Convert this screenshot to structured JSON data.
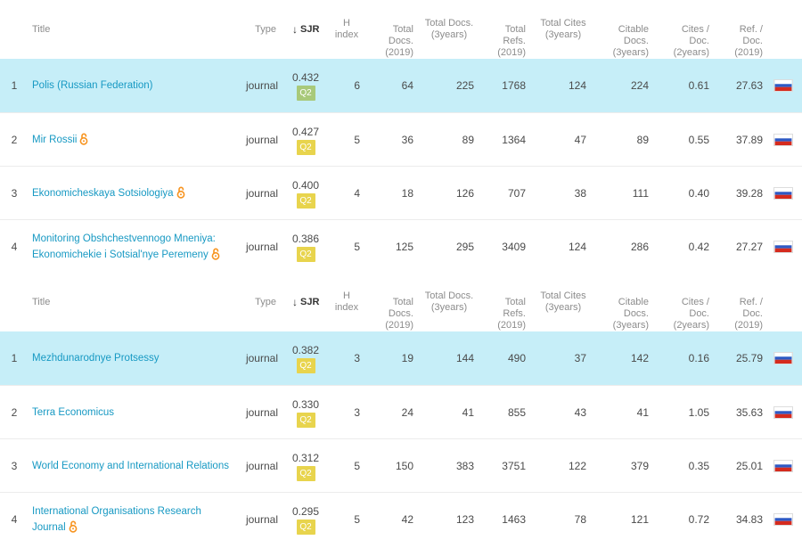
{
  "colors": {
    "link": "#1799c3",
    "highlight_row": "#c6eef8",
    "q2_badge": "#e8d44d",
    "q2_badge_highlighted": "#a8c97a"
  },
  "header": {
    "title": "Title",
    "type": "Type",
    "sjr": "SJR",
    "h_index_1": "H",
    "h_index_2": "index",
    "total_docs_1": "Total",
    "total_docs_2": "Docs.",
    "total_docs_3": "(2019)",
    "total_docs_3y_1": "Total Docs.",
    "total_docs_3y_2": "(3years)",
    "total_refs_1": "Total",
    "total_refs_2": "Refs.",
    "total_refs_3": "(2019)",
    "total_cites_1": "Total Cites",
    "total_cites_2": "(3years)",
    "citable_1": "Citable",
    "citable_2": "Docs.",
    "citable_3": "(3years)",
    "cites_doc_1": "Cites /",
    "cites_doc_2": "Doc.",
    "cites_doc_3": "(2years)",
    "ref_doc_1": "Ref. /",
    "ref_doc_2": "Doc.",
    "ref_doc_3": "(2019)"
  },
  "tables": [
    {
      "rows": [
        {
          "rank": "1",
          "title": "Polis (Russian Federation)",
          "open_access": false,
          "type": "journal",
          "sjr": "0.432",
          "quartile": "Q2",
          "h_index": "6",
          "total_docs": "64",
          "total_docs_3y": "225",
          "total_refs": "1768",
          "total_cites_3y": "124",
          "citable_docs_3y": "224",
          "cites_per_doc": "0.61",
          "refs_per_doc": "27.63",
          "country_flag": "russia-flag-icon"
        },
        {
          "rank": "2",
          "title": "Mir Rossii",
          "open_access": true,
          "type": "journal",
          "sjr": "0.427",
          "quartile": "Q2",
          "h_index": "5",
          "total_docs": "36",
          "total_docs_3y": "89",
          "total_refs": "1364",
          "total_cites_3y": "47",
          "citable_docs_3y": "89",
          "cites_per_doc": "0.55",
          "refs_per_doc": "37.89",
          "country_flag": "russia-flag-icon"
        },
        {
          "rank": "3",
          "title": "Ekonomicheskaya Sotsiologiya",
          "open_access": true,
          "type": "journal",
          "sjr": "0.400",
          "quartile": "Q2",
          "h_index": "4",
          "total_docs": "18",
          "total_docs_3y": "126",
          "total_refs": "707",
          "total_cites_3y": "38",
          "citable_docs_3y": "111",
          "cites_per_doc": "0.40",
          "refs_per_doc": "39.28",
          "country_flag": "russia-flag-icon"
        },
        {
          "rank": "4",
          "title_line1": "Monitoring Obshchestvennogo Mneniya:",
          "title_line2": "Ekonomichekie i Sotsial'nye Peremeny",
          "open_access": true,
          "type": "journal",
          "sjr": "0.386",
          "quartile": "Q2",
          "h_index": "5",
          "total_docs": "125",
          "total_docs_3y": "295",
          "total_refs": "3409",
          "total_cites_3y": "124",
          "citable_docs_3y": "286",
          "cites_per_doc": "0.42",
          "refs_per_doc": "27.27",
          "country_flag": "russia-flag-icon"
        }
      ]
    },
    {
      "rows": [
        {
          "rank": "1",
          "title": "Mezhdunarodnye Protsessy",
          "open_access": false,
          "type": "journal",
          "sjr": "0.382",
          "quartile": "Q2",
          "h_index": "3",
          "total_docs": "19",
          "total_docs_3y": "144",
          "total_refs": "490",
          "total_cites_3y": "37",
          "citable_docs_3y": "142",
          "cites_per_doc": "0.16",
          "refs_per_doc": "25.79",
          "country_flag": "russia-flag-icon"
        },
        {
          "rank": "2",
          "title": "Terra Economicus",
          "open_access": false,
          "type": "journal",
          "sjr": "0.330",
          "quartile": "Q2",
          "h_index": "3",
          "total_docs": "24",
          "total_docs_3y": "41",
          "total_refs": "855",
          "total_cites_3y": "43",
          "citable_docs_3y": "41",
          "cites_per_doc": "1.05",
          "refs_per_doc": "35.63",
          "country_flag": "russia-flag-icon"
        },
        {
          "rank": "3",
          "title": "World Economy and International Relations",
          "open_access": false,
          "type": "journal",
          "sjr": "0.312",
          "quartile": "Q2",
          "h_index": "5",
          "total_docs": "150",
          "total_docs_3y": "383",
          "total_refs": "3751",
          "total_cites_3y": "122",
          "citable_docs_3y": "379",
          "cites_per_doc": "0.35",
          "refs_per_doc": "25.01",
          "country_flag": "russia-flag-icon"
        },
        {
          "rank": "4",
          "title_line1": "International Organisations Research",
          "title_line2": "Journal",
          "open_access": true,
          "type": "journal",
          "sjr": "0.295",
          "quartile": "Q2",
          "h_index": "5",
          "total_docs": "42",
          "total_docs_3y": "123",
          "total_refs": "1463",
          "total_cites_3y": "78",
          "citable_docs_3y": "121",
          "cites_per_doc": "0.72",
          "refs_per_doc": "34.83",
          "country_flag": "russia-flag-icon"
        }
      ]
    }
  ]
}
